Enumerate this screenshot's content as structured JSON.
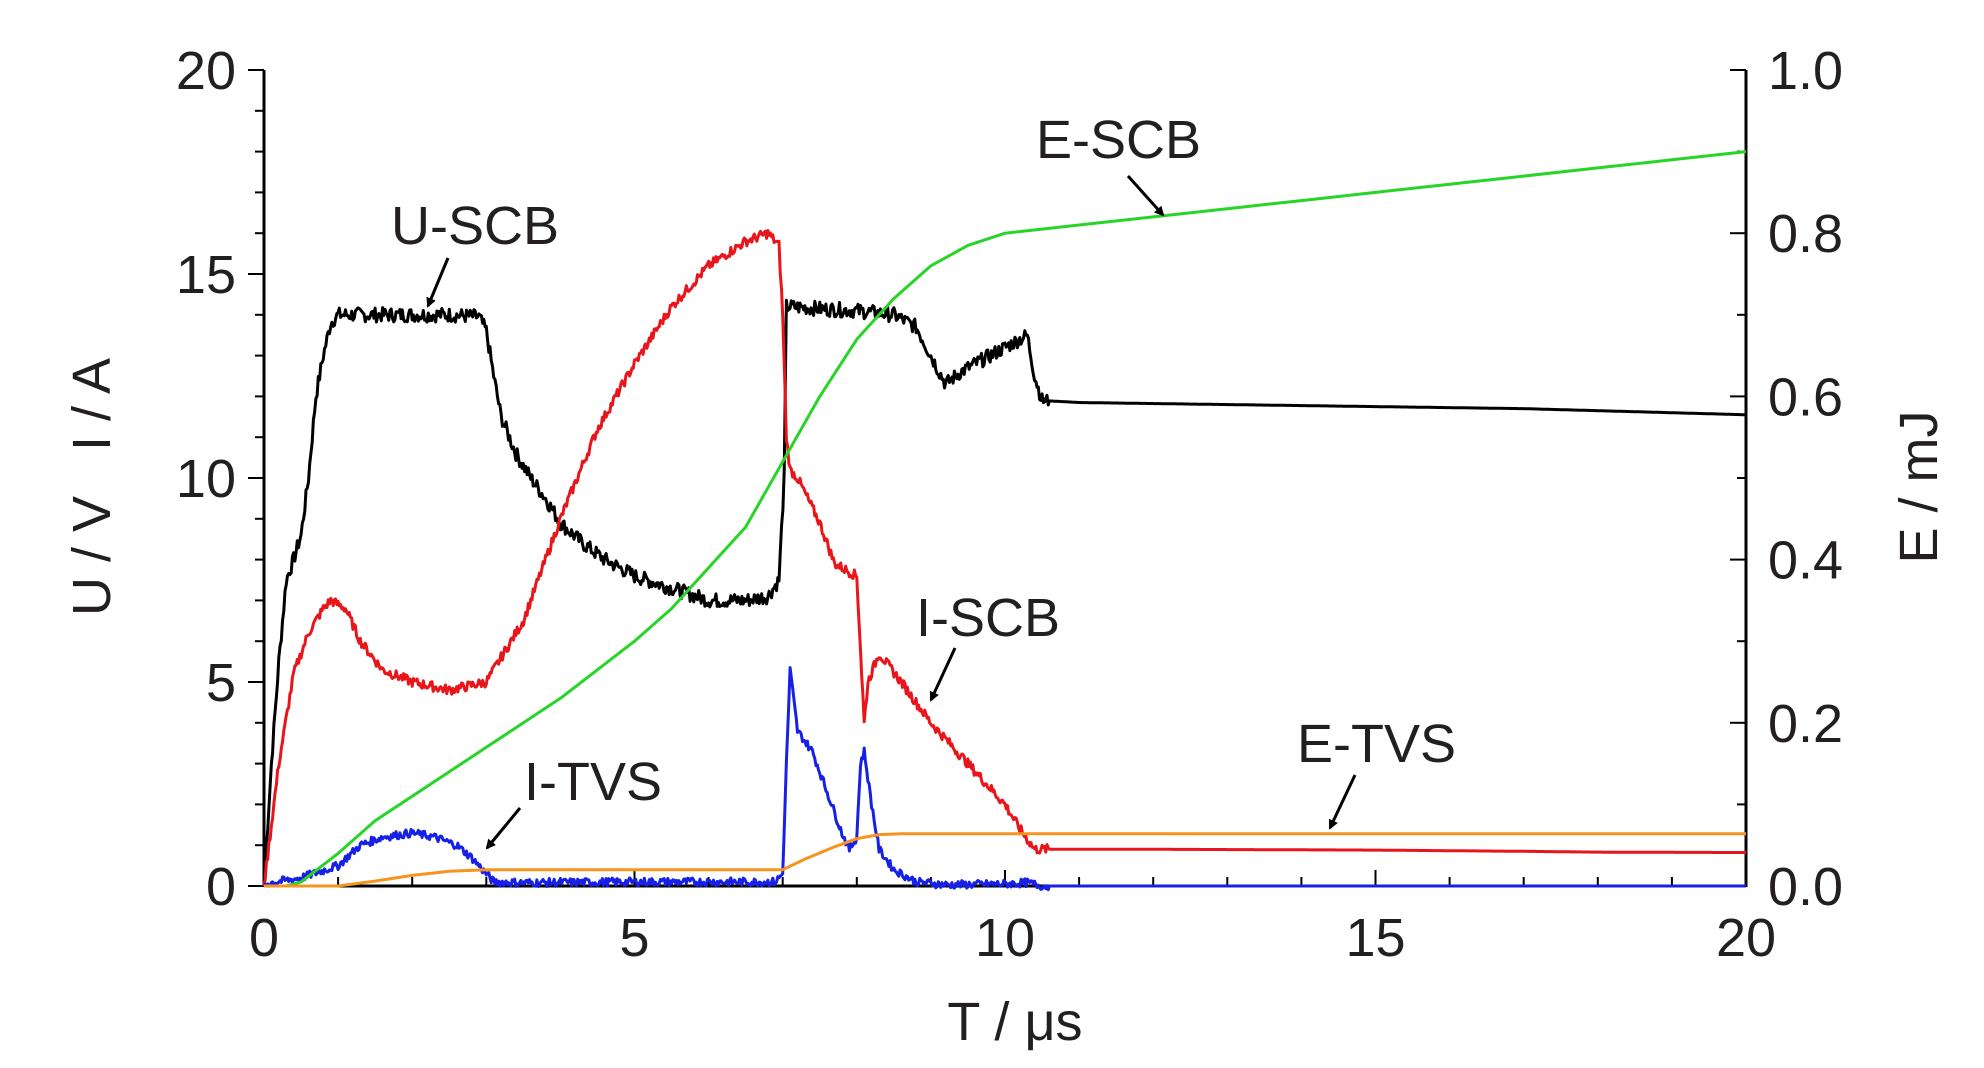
{
  "chart_data": {
    "type": "line",
    "xlabel": "T / μs",
    "ylabel": "U / V   I / A",
    "y2label": "E / mJ",
    "xlim": [
      0,
      20
    ],
    "ylim": [
      0,
      20
    ],
    "y2lim": [
      0,
      1.0
    ],
    "x_ticks": [
      "0",
      "5",
      "10",
      "15",
      "20"
    ],
    "y_ticks": [
      "0",
      "5",
      "10",
      "15",
      "20"
    ],
    "y2_ticks": [
      "0.0",
      "0.2",
      "0.4",
      "0.6",
      "0.8",
      "1.0"
    ],
    "grid": false,
    "legend": "none",
    "colors": {
      "U-SCB": "#000000",
      "I-SCB": "#e8161b",
      "I-TVS": "#1620e6",
      "E-SCB": "#28d428",
      "E-TVS": "#f7941d"
    },
    "series": [
      {
        "name": "U-SCB",
        "axis": "left",
        "x": [
          0,
          0.1,
          0.2,
          0.3,
          0.4,
          0.5,
          0.6,
          0.7,
          0.8,
          0.9,
          1.0,
          1.3,
          2.0,
          2.5,
          2.9,
          3.0,
          3.1,
          3.2,
          3.4,
          3.6,
          3.8,
          4.0,
          4.3,
          4.6,
          5.0,
          5.5,
          6.0,
          6.5,
          6.8,
          6.95,
          7.02,
          7.05,
          7.1,
          7.5,
          8.0,
          8.5,
          8.8,
          9.0,
          9.2,
          9.4,
          9.6,
          9.8,
          10.0,
          10.2,
          10.3,
          10.4,
          10.5,
          11.0,
          13.0,
          15.0,
          17.0,
          19.0,
          20.0
        ],
        "y": [
          0,
          3.0,
          5.5,
          7.5,
          8.0,
          8.6,
          10.0,
          12.0,
          13.0,
          13.8,
          14.0,
          14.0,
          14.0,
          14.0,
          13.95,
          13.6,
          12.5,
          11.5,
          10.6,
          10.0,
          9.5,
          8.9,
          8.4,
          8.0,
          7.6,
          7.3,
          7.0,
          7.0,
          7.1,
          7.5,
          10.0,
          14.2,
          14.2,
          14.15,
          14.1,
          14.0,
          13.7,
          13.0,
          12.3,
          12.6,
          12.8,
          13.0,
          13.2,
          13.4,
          13.5,
          12.5,
          11.9,
          11.85,
          11.8,
          11.75,
          11.7,
          11.6,
          11.55
        ]
      },
      {
        "name": "I-SCB",
        "axis": "left",
        "x": [
          0,
          0.2,
          0.4,
          0.6,
          0.8,
          0.9,
          1.1,
          1.3,
          1.6,
          2.0,
          2.5,
          3.0,
          3.5,
          4.0,
          4.5,
          5.0,
          5.5,
          6.0,
          6.5,
          6.8,
          6.95,
          7.0,
          7.05,
          7.1,
          7.2,
          7.5,
          7.7,
          8.0,
          8.1,
          8.15,
          8.3,
          8.6,
          9.0,
          9.5,
          10.0,
          10.2,
          10.4,
          12.0,
          15.0,
          17.0,
          18.0,
          20.0
        ],
        "y": [
          0,
          3.0,
          5.2,
          6.2,
          6.8,
          7.0,
          6.8,
          6.0,
          5.3,
          5.0,
          4.8,
          5.0,
          6.5,
          9.0,
          11.2,
          12.8,
          14.2,
          15.2,
          15.8,
          16.0,
          15.7,
          14.0,
          11.0,
          10.2,
          10.0,
          8.9,
          7.9,
          7.6,
          4.0,
          5.0,
          5.7,
          5.0,
          4.0,
          3.0,
          2.0,
          1.4,
          0.9,
          0.9,
          0.88,
          0.85,
          0.83,
          0.82
        ]
      },
      {
        "name": "I-TVS",
        "axis": "left",
        "x": [
          0,
          0.5,
          1.0,
          1.3,
          1.6,
          2.0,
          2.3,
          2.6,
          2.8,
          2.95,
          3.1,
          3.5,
          5.0,
          6.0,
          6.9,
          7.0,
          7.05,
          7.1,
          7.2,
          7.4,
          7.6,
          7.8,
          7.9,
          8.0,
          8.05,
          8.1,
          8.2,
          8.3,
          8.5,
          8.8,
          9.2,
          10.0,
          10.3,
          10.5,
          12.0,
          15.0,
          20.0
        ],
        "y": [
          0.05,
          0.2,
          0.5,
          1.0,
          1.2,
          1.3,
          1.2,
          1.0,
          0.7,
          0.4,
          0.1,
          0.08,
          0.1,
          0.1,
          0.1,
          0.3,
          3.0,
          5.3,
          3.8,
          3.3,
          2.3,
          1.3,
          0.9,
          1.2,
          3.0,
          3.3,
          2.0,
          0.9,
          0.4,
          0.1,
          0.03,
          0.05,
          0.08,
          0.0,
          0.0,
          0.0,
          0.0
        ]
      },
      {
        "name": "E-SCB",
        "axis": "right",
        "x": [
          0.3,
          0.5,
          1.0,
          1.5,
          2.0,
          3.0,
          4.0,
          5.0,
          5.5,
          6.0,
          6.5,
          7.0,
          7.5,
          8.0,
          8.5,
          9.0,
          9.5,
          10.0,
          10.5,
          11.0,
          12.0,
          13.0,
          14.0,
          15.0,
          16.0,
          17.0,
          18.0,
          19.0,
          20.0
        ],
        "y": [
          0.0,
          0.005,
          0.04,
          0.08,
          0.11,
          0.17,
          0.23,
          0.3,
          0.34,
          0.39,
          0.44,
          0.52,
          0.6,
          0.67,
          0.72,
          0.76,
          0.785,
          0.8,
          0.805,
          0.81,
          0.82,
          0.83,
          0.84,
          0.85,
          0.86,
          0.87,
          0.88,
          0.89,
          0.9
        ]
      },
      {
        "name": "E-TVS",
        "axis": "right",
        "x": [
          0,
          1.0,
          1.5,
          2.0,
          2.5,
          3.0,
          4.0,
          5.0,
          6.0,
          7.0,
          7.3,
          7.7,
          8.0,
          8.3,
          8.6,
          9.0,
          10.0,
          12.0,
          15.0,
          20.0
        ],
        "y": [
          0.0,
          0.0,
          0.006,
          0.013,
          0.018,
          0.02,
          0.02,
          0.02,
          0.02,
          0.02,
          0.033,
          0.048,
          0.058,
          0.063,
          0.064,
          0.064,
          0.064,
          0.064,
          0.064,
          0.064
        ]
      }
    ],
    "annotations": [
      {
        "text": "U-SCB"
      },
      {
        "text": "E-SCB"
      },
      {
        "text": "I-SCB"
      },
      {
        "text": "I-TVS"
      },
      {
        "text": "E-TVS"
      }
    ]
  }
}
